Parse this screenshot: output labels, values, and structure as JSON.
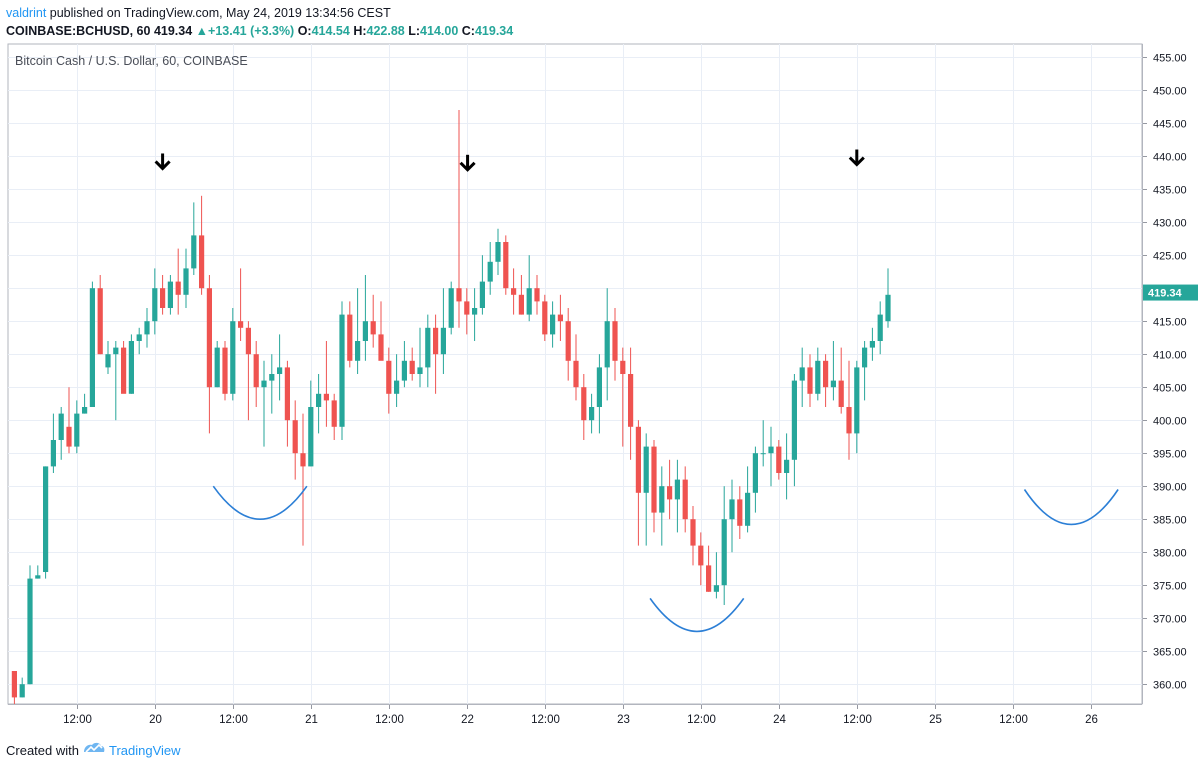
{
  "header": {
    "author": "valdrint",
    "published_text": "published on TradingView.com, May 24, 2019 13:34:56 CEST"
  },
  "quote": {
    "symbol": "COINBASE:BCHUSD, 60",
    "last": "419.34",
    "change": "+13.41 (+3.3%)",
    "o_label": "O:",
    "o": "414.54",
    "h_label": "H:",
    "h": "422.88",
    "l_label": "L:",
    "l": "414.00",
    "c_label": "C:",
    "c": "419.34"
  },
  "footer": {
    "created_with": "Created with",
    "brand": "TradingView"
  },
  "colors": {
    "up": "#26a69a",
    "down": "#ef5350",
    "grid": "#e9eef6",
    "accent": "#2196f3",
    "arc": "#2c7fd6"
  },
  "chart_data": {
    "type": "candlestick",
    "title": "Bitcoin Cash / U.S. Dollar, 60, COINBASE",
    "ylim": [
      357,
      457
    ],
    "y_ticks": [
      360,
      365,
      370,
      375,
      380,
      385,
      390,
      395,
      400,
      405,
      410,
      415,
      420,
      425,
      430,
      435,
      440,
      445,
      450,
      455
    ],
    "x_ticks": [
      {
        "label": "12:00",
        "slot": 8.5
      },
      {
        "label": "20",
        "slot": 18.5
      },
      {
        "label": "12:00",
        "slot": 28.5
      },
      {
        "label": "21",
        "slot": 38.5
      },
      {
        "label": "12:00",
        "slot": 48.5
      },
      {
        "label": "22",
        "slot": 58.5
      },
      {
        "label": "12:00",
        "slot": 68.5
      },
      {
        "label": "23",
        "slot": 78.5
      },
      {
        "label": "12:00",
        "slot": 88.5
      },
      {
        "label": "24",
        "slot": 98.5
      },
      {
        "label": "12:00",
        "slot": 108.5
      },
      {
        "label": "25",
        "slot": 118.5
      },
      {
        "label": "12:00",
        "slot": 128.5
      },
      {
        "label": "26",
        "slot": 138.5
      }
    ],
    "last_price_label": "419.34",
    "last_price": 419.34,
    "candles": [
      [
        362,
        357,
        362,
        358
      ],
      [
        358,
        358,
        361,
        360
      ],
      [
        360,
        360,
        378,
        376
      ],
      [
        376,
        376,
        378,
        376.5
      ],
      [
        377,
        376,
        393,
        393
      ],
      [
        393,
        392,
        401,
        397
      ],
      [
        397,
        394,
        402,
        401
      ],
      [
        399,
        395,
        405,
        396
      ],
      [
        396,
        395,
        403,
        401
      ],
      [
        401,
        401,
        404,
        402
      ],
      [
        402,
        402,
        421,
        420
      ],
      [
        420,
        410,
        422,
        410
      ],
      [
        408,
        407,
        412,
        410
      ],
      [
        410,
        400,
        412,
        411
      ],
      [
        411,
        405,
        412,
        404
      ],
      [
        404,
        404,
        413,
        412
      ],
      [
        412,
        410,
        414,
        413
      ],
      [
        413,
        411,
        417,
        415
      ],
      [
        415,
        413,
        423,
        420
      ],
      [
        420,
        416,
        422,
        417
      ],
      [
        417,
        416,
        422,
        421
      ],
      [
        421,
        416,
        426,
        419
      ],
      [
        419,
        417,
        426,
        423
      ],
      [
        423,
        422,
        433,
        428
      ],
      [
        428,
        419,
        434,
        420
      ],
      [
        420,
        398,
        422,
        405
      ],
      [
        405,
        405,
        412,
        411
      ],
      [
        411,
        403,
        412,
        404
      ],
      [
        404,
        403,
        417,
        415
      ],
      [
        415,
        412,
        423,
        414
      ],
      [
        414,
        400,
        415,
        410
      ],
      [
        410,
        402,
        412,
        405
      ],
      [
        405,
        396,
        409,
        406
      ],
      [
        406,
        401,
        410,
        407
      ],
      [
        407,
        403,
        413,
        408
      ],
      [
        408,
        396,
        409,
        400
      ],
      [
        400,
        391,
        403,
        395
      ],
      [
        395,
        381,
        401,
        393
      ],
      [
        393,
        393,
        406,
        402
      ],
      [
        402,
        398,
        407,
        404
      ],
      [
        404,
        399,
        412,
        403
      ],
      [
        403,
        397,
        404,
        399
      ],
      [
        399,
        397,
        418,
        416
      ],
      [
        416,
        408,
        418,
        409
      ],
      [
        409,
        407,
        420,
        412
      ],
      [
        412,
        409,
        422,
        415
      ],
      [
        415,
        411,
        419,
        413
      ],
      [
        413,
        410,
        418,
        409
      ],
      [
        409,
        401,
        411,
        404
      ],
      [
        404,
        402,
        410,
        406
      ],
      [
        406,
        405,
        412,
        409
      ],
      [
        409,
        406,
        411,
        407
      ],
      [
        407,
        405,
        414,
        408
      ],
      [
        408,
        405,
        416,
        414
      ],
      [
        414,
        404,
        416,
        410
      ],
      [
        410,
        407,
        420,
        414
      ],
      [
        414,
        413,
        421,
        420
      ],
      [
        420,
        414,
        447,
        418
      ],
      [
        418,
        413,
        420,
        416
      ],
      [
        416,
        412,
        420,
        417
      ],
      [
        417,
        416,
        425,
        421
      ],
      [
        421,
        419,
        427,
        424
      ],
      [
        424,
        422,
        429,
        427
      ],
      [
        427,
        419,
        428,
        420
      ],
      [
        420,
        416,
        423,
        419
      ],
      [
        419,
        416,
        422,
        416
      ],
      [
        416,
        415,
        425,
        420
      ],
      [
        420,
        416,
        422,
        418
      ],
      [
        418,
        412,
        419,
        413
      ],
      [
        413,
        411,
        418,
        416
      ],
      [
        416,
        412,
        419,
        415
      ],
      [
        415,
        406,
        417,
        409
      ],
      [
        409,
        403,
        413,
        405
      ],
      [
        405,
        397,
        407,
        400
      ],
      [
        400,
        398,
        404,
        402
      ],
      [
        402,
        398,
        410,
        408
      ],
      [
        408,
        403,
        420,
        415
      ],
      [
        415,
        406,
        417,
        409
      ],
      [
        409,
        396,
        411,
        407
      ],
      [
        407,
        394,
        411,
        399
      ],
      [
        399,
        381,
        400,
        389
      ],
      [
        389,
        381,
        398,
        396
      ],
      [
        396,
        383,
        397,
        386
      ],
      [
        386,
        381,
        393,
        390
      ],
      [
        390,
        385,
        394,
        388
      ],
      [
        388,
        383,
        394,
        391
      ],
      [
        391,
        383,
        393,
        385
      ],
      [
        385,
        378,
        387,
        381
      ],
      [
        381,
        375,
        383,
        378
      ],
      [
        378,
        374,
        381,
        374
      ],
      [
        374,
        373,
        380,
        375
      ],
      [
        375,
        372,
        390,
        385
      ],
      [
        385,
        380,
        391,
        388
      ],
      [
        388,
        382,
        390,
        384
      ],
      [
        384,
        383,
        393,
        389
      ],
      [
        389,
        386,
        396,
        395
      ],
      [
        395,
        393,
        400,
        395
      ],
      [
        395,
        390,
        399,
        396
      ],
      [
        396,
        391,
        397,
        392
      ],
      [
        392,
        388,
        398,
        394
      ],
      [
        394,
        390,
        407,
        406
      ],
      [
        406,
        402,
        411,
        408
      ],
      [
        408,
        402,
        410,
        404
      ],
      [
        404,
        403,
        411,
        409
      ],
      [
        409,
        402,
        410,
        405
      ],
      [
        405,
        403,
        412,
        406
      ],
      [
        406,
        401,
        411,
        402
      ],
      [
        402,
        394,
        409,
        398
      ],
      [
        398,
        395,
        409,
        408
      ],
      [
        408,
        403,
        412,
        411
      ],
      [
        411,
        409,
        414,
        412
      ],
      [
        412,
        410,
        418,
        416
      ],
      [
        415,
        414,
        423,
        419
      ]
    ],
    "annotations": {
      "arrows": [
        {
          "slot": 19.5,
          "price": 439.2
        },
        {
          "slot": 58.6,
          "price": 439.0
        },
        {
          "slot": 108.5,
          "price": 439.8
        }
      ],
      "arcs": [
        {
          "from_slot": 26.0,
          "to_slot": 38.0,
          "top_price": 390.0,
          "bottom_price": 385.0
        },
        {
          "from_slot": 82.0,
          "to_slot": 94.0,
          "top_price": 373.0,
          "bottom_price": 368.0
        },
        {
          "from_slot": 130.0,
          "to_slot": 142.0,
          "top_price": 389.5,
          "bottom_price": 384.2
        }
      ]
    }
  }
}
